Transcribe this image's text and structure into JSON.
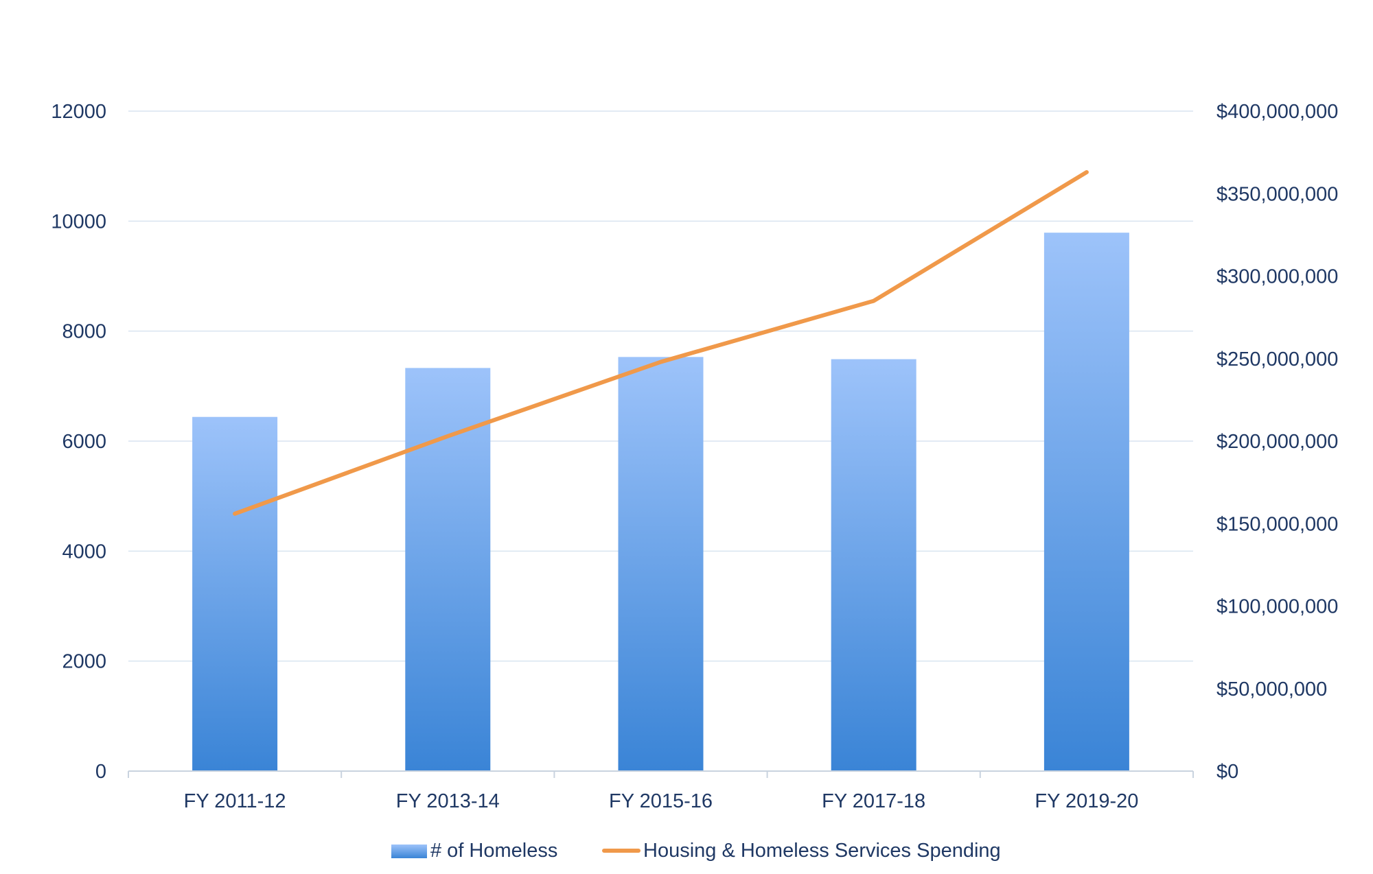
{
  "chart_data": {
    "type": "bar",
    "title": "",
    "categories": [
      "FY 2011-12",
      "FY 2013-14",
      "FY 2015-16",
      "FY 2017-18",
      "FY 2019-20"
    ],
    "series": [
      {
        "name": "# of Homeless",
        "type": "bar",
        "axis": "left",
        "values": [
          6440,
          7330,
          7530,
          7490,
          9790
        ]
      },
      {
        "name": "Housing & Homeless Services Spending",
        "type": "line",
        "axis": "right",
        "values": [
          156000000,
          203000000,
          248000000,
          285000000,
          363000000
        ]
      }
    ],
    "ylim": [
      0,
      12000
    ],
    "y2lim": [
      0,
      400000000
    ],
    "y_ticks": [
      "0",
      "2000",
      "4000",
      "6000",
      "8000",
      "10000",
      "12000"
    ],
    "y2_ticks": [
      "$0",
      "$50,000,000",
      "$100,000,000",
      "$150,000,000",
      "$200,000,000",
      "$250,000,000",
      "$300,000,000",
      "$350,000,000",
      "$400,000,000"
    ],
    "grid": true,
    "legend_position": "bottom",
    "colors": {
      "bar_top": "#9DC3FA",
      "bar_bottom": "#3A84D6",
      "line": "#F0994A",
      "grid": "#D9E4F0",
      "axis_text": "#1F3864"
    }
  }
}
